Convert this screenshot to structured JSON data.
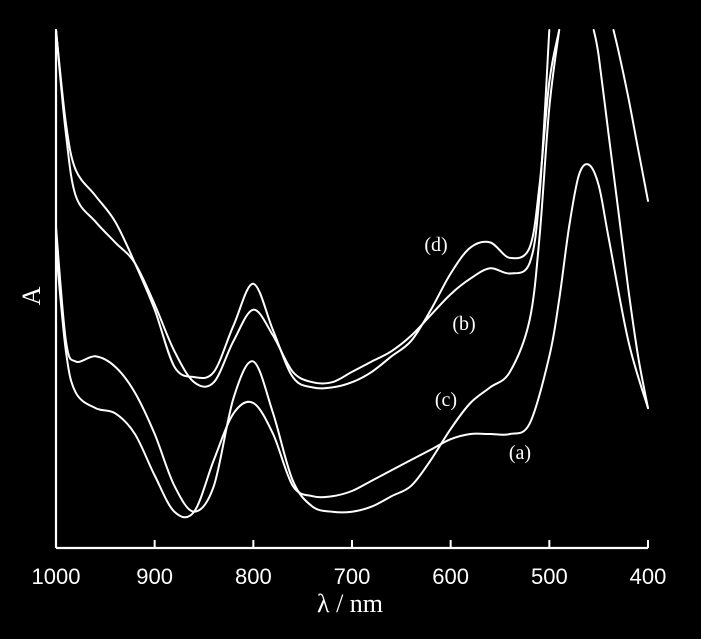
{
  "chart_data": {
    "type": "line",
    "xlabel": "λ / nm",
    "ylabel": "A",
    "xlim": [
      1000,
      400
    ],
    "ylim": [
      0,
      1
    ],
    "xticks": [
      1000,
      900,
      800,
      700,
      600,
      500,
      400
    ],
    "grid": false,
    "series": [
      {
        "name": "(a)",
        "x": [
          1000,
          990,
          980,
          960,
          940,
          920,
          900,
          880,
          860,
          840,
          820,
          800,
          780,
          760,
          740,
          720,
          700,
          680,
          660,
          640,
          620,
          600,
          580,
          560,
          540,
          520,
          500,
          490,
          480,
          470,
          460,
          450,
          440,
          420,
          400
        ],
        "y": [
          0.58,
          0.38,
          0.3,
          0.27,
          0.26,
          0.22,
          0.14,
          0.07,
          0.07,
          0.17,
          0.26,
          0.28,
          0.22,
          0.12,
          0.1,
          0.1,
          0.11,
          0.13,
          0.15,
          0.17,
          0.19,
          0.21,
          0.22,
          0.22,
          0.22,
          0.24,
          0.37,
          0.48,
          0.62,
          0.72,
          0.74,
          0.7,
          0.6,
          0.4,
          0.27
        ]
      },
      {
        "name": "(b)",
        "x": [
          1000,
          990,
          980,
          960,
          940,
          920,
          900,
          880,
          860,
          840,
          820,
          800,
          780,
          760,
          740,
          720,
          700,
          680,
          660,
          640,
          620,
          600,
          580,
          560,
          540,
          520,
          510,
          500
        ],
        "y": [
          1.0,
          0.8,
          0.68,
          0.63,
          0.59,
          0.55,
          0.47,
          0.38,
          0.32,
          0.32,
          0.4,
          0.46,
          0.41,
          0.34,
          0.32,
          0.32,
          0.34,
          0.36,
          0.38,
          0.41,
          0.45,
          0.49,
          0.52,
          0.54,
          0.53,
          0.55,
          0.68,
          1.0
        ]
      },
      {
        "name": "(c)",
        "x": [
          1000,
          990,
          980,
          960,
          940,
          920,
          900,
          880,
          860,
          840,
          820,
          800,
          780,
          760,
          740,
          720,
          700,
          680,
          660,
          640,
          620,
          600,
          580,
          560,
          540,
          520,
          510,
          500,
          490
        ],
        "y": [
          0.62,
          0.4,
          0.36,
          0.37,
          0.35,
          0.3,
          0.22,
          0.12,
          0.07,
          0.12,
          0.29,
          0.36,
          0.26,
          0.13,
          0.08,
          0.07,
          0.07,
          0.08,
          0.1,
          0.12,
          0.17,
          0.23,
          0.28,
          0.31,
          0.34,
          0.44,
          0.6,
          0.85,
          1.0
        ]
      },
      {
        "name": "(d)",
        "x": [
          1000,
          990,
          980,
          960,
          940,
          920,
          900,
          880,
          860,
          840,
          820,
          800,
          780,
          760,
          740,
          720,
          700,
          680,
          660,
          640,
          620,
          600,
          580,
          560,
          540,
          520,
          510,
          500,
          490
        ],
        "y": [
          1.0,
          0.82,
          0.73,
          0.68,
          0.63,
          0.55,
          0.46,
          0.35,
          0.33,
          0.34,
          0.43,
          0.51,
          0.42,
          0.33,
          0.31,
          0.31,
          0.32,
          0.34,
          0.37,
          0.4,
          0.46,
          0.53,
          0.58,
          0.59,
          0.56,
          0.58,
          0.7,
          0.9,
          1.0
        ]
      },
      {
        "name": "",
        "x": [
          455,
          450,
          440,
          430,
          420,
          410,
          400
        ],
        "y": [
          1.0,
          0.95,
          0.8,
          0.65,
          0.5,
          0.37,
          0.27
        ]
      },
      {
        "name": "",
        "x": [
          435,
          430,
          420,
          410,
          400
        ],
        "y": [
          1.0,
          0.96,
          0.87,
          0.77,
          0.67
        ]
      }
    ],
    "annotations": [
      {
        "text": "(d)",
        "series": "(d)"
      },
      {
        "text": "(b)",
        "series": "(b)"
      },
      {
        "text": "(c)",
        "series": "(c)"
      },
      {
        "text": "(a)",
        "series": "(a)"
      }
    ]
  }
}
